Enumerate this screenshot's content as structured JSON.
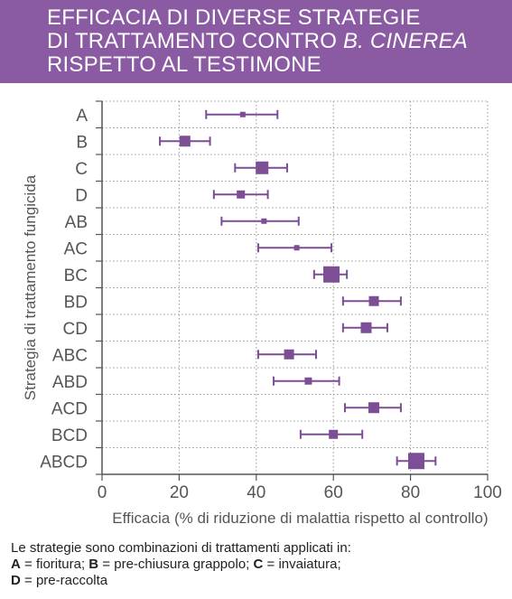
{
  "title": {
    "line1": "EFFICACIA DI DIVERSE STRATEGIE",
    "line2_prefix": "DI TRATTAMENTO CONTRO ",
    "line2_italic": "B. CINEREA",
    "line3": "RISPETTO AL TESTIMONE"
  },
  "colors": {
    "banner": "#8a5aa3",
    "series": "#7b4e96",
    "axis": "#555555",
    "grid": "#9a9a9a"
  },
  "chart_data": {
    "type": "scatter",
    "subtype": "point-with-error-bars",
    "orientation": "horizontal",
    "xlabel": "Efficacia (% di riduzione di malattia rispetto al controllo)",
    "ylabel": "Strategia di trattamento fungicida",
    "xlim": [
      0,
      100
    ],
    "xticks": [
      0,
      20,
      40,
      60,
      80,
      100
    ],
    "grid": true,
    "legend": "none",
    "categories": [
      "A",
      "B",
      "C",
      "D",
      "AB",
      "AC",
      "BC",
      "BD",
      "CD",
      "ABC",
      "ABD",
      "ACD",
      "BCD",
      "ABCD"
    ],
    "points": [
      {
        "label": "A",
        "mean": 36.5,
        "low": 27,
        "high": 45.5,
        "size": 3
      },
      {
        "label": "B",
        "mean": 21.5,
        "low": 15,
        "high": 28,
        "size": 6
      },
      {
        "label": "C",
        "mean": 41.5,
        "low": 34.5,
        "high": 48,
        "size": 7
      },
      {
        "label": "D",
        "mean": 36,
        "low": 29,
        "high": 43,
        "size": 4.5
      },
      {
        "label": "AB",
        "mean": 42,
        "low": 31,
        "high": 51,
        "size": 3
      },
      {
        "label": "AC",
        "mean": 50.5,
        "low": 40.5,
        "high": 59.5,
        "size": 3
      },
      {
        "label": "BC",
        "mean": 59.5,
        "low": 55,
        "high": 63.5,
        "size": 9
      },
      {
        "label": "BD",
        "mean": 70.5,
        "low": 62.5,
        "high": 77.5,
        "size": 5.5
      },
      {
        "label": "CD",
        "mean": 68.5,
        "low": 62.5,
        "high": 74,
        "size": 6
      },
      {
        "label": "ABC",
        "mean": 48.5,
        "low": 40.5,
        "high": 55.5,
        "size": 5.5
      },
      {
        "label": "ABD",
        "mean": 53.5,
        "low": 44.5,
        "high": 61.5,
        "size": 4
      },
      {
        "label": "ACD",
        "mean": 70.5,
        "low": 63,
        "high": 77.5,
        "size": 6
      },
      {
        "label": "BCD",
        "mean": 60,
        "low": 51.5,
        "high": 67.5,
        "size": 5
      },
      {
        "label": "ABCD",
        "mean": 81.5,
        "low": 76.5,
        "high": 86.5,
        "size": 9
      }
    ]
  },
  "footnote": {
    "intro": "Le strategie sono combinazioni di trattamenti applicati in:",
    "items": [
      {
        "key": "A",
        "text": " = fioritura; "
      },
      {
        "key": "B",
        "text": " = pre-chiusura grappolo; "
      },
      {
        "key": "C",
        "text": " = invaiatura;"
      },
      {
        "key": "D",
        "text": " = pre-raccolta"
      }
    ]
  }
}
